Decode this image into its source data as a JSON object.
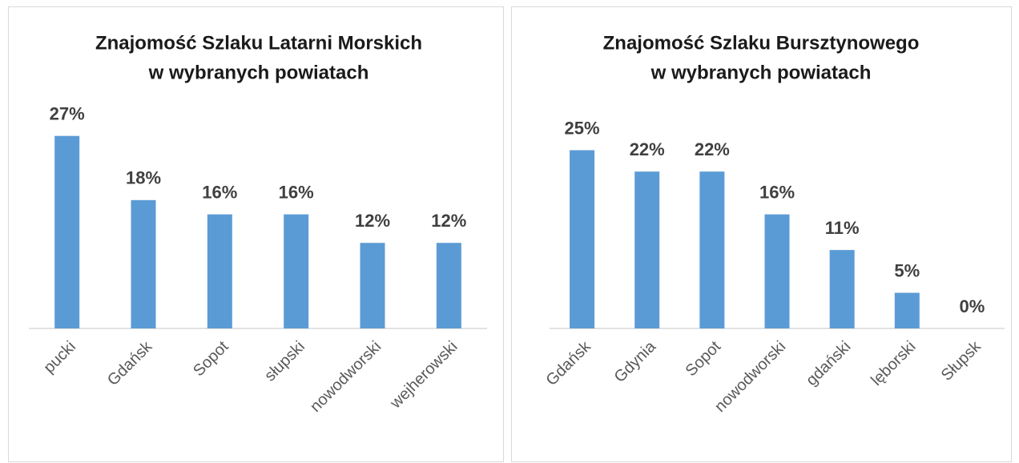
{
  "chart_data": [
    {
      "type": "bar",
      "title": [
        "Znajomość Szlaku Latarni Morskich",
        "w wybranych powiatach"
      ],
      "categories": [
        "pucki",
        "Gdańsk",
        "Sopot",
        "słupski",
        "nowodworski",
        "wejherowski"
      ],
      "values": [
        27,
        18,
        16,
        16,
        12,
        12
      ],
      "value_labels": [
        "27%",
        "18%",
        "16%",
        "16%",
        "12%",
        "12%"
      ],
      "color": "#5b9bd5"
    },
    {
      "type": "bar",
      "title": [
        "Znajomość Szlaku Bursztynowego",
        "w wybranych powiatach"
      ],
      "categories": [
        "Gdańsk",
        "Gdynia",
        "Sopot",
        "nowodworski",
        "gdański",
        "lęborski",
        "Słupsk"
      ],
      "values": [
        25,
        22,
        22,
        16,
        11,
        5,
        0
      ],
      "value_labels": [
        "25%",
        "22%",
        "22%",
        "16%",
        "11%",
        "5%",
        "0%"
      ],
      "color": "#5b9bd5"
    }
  ]
}
